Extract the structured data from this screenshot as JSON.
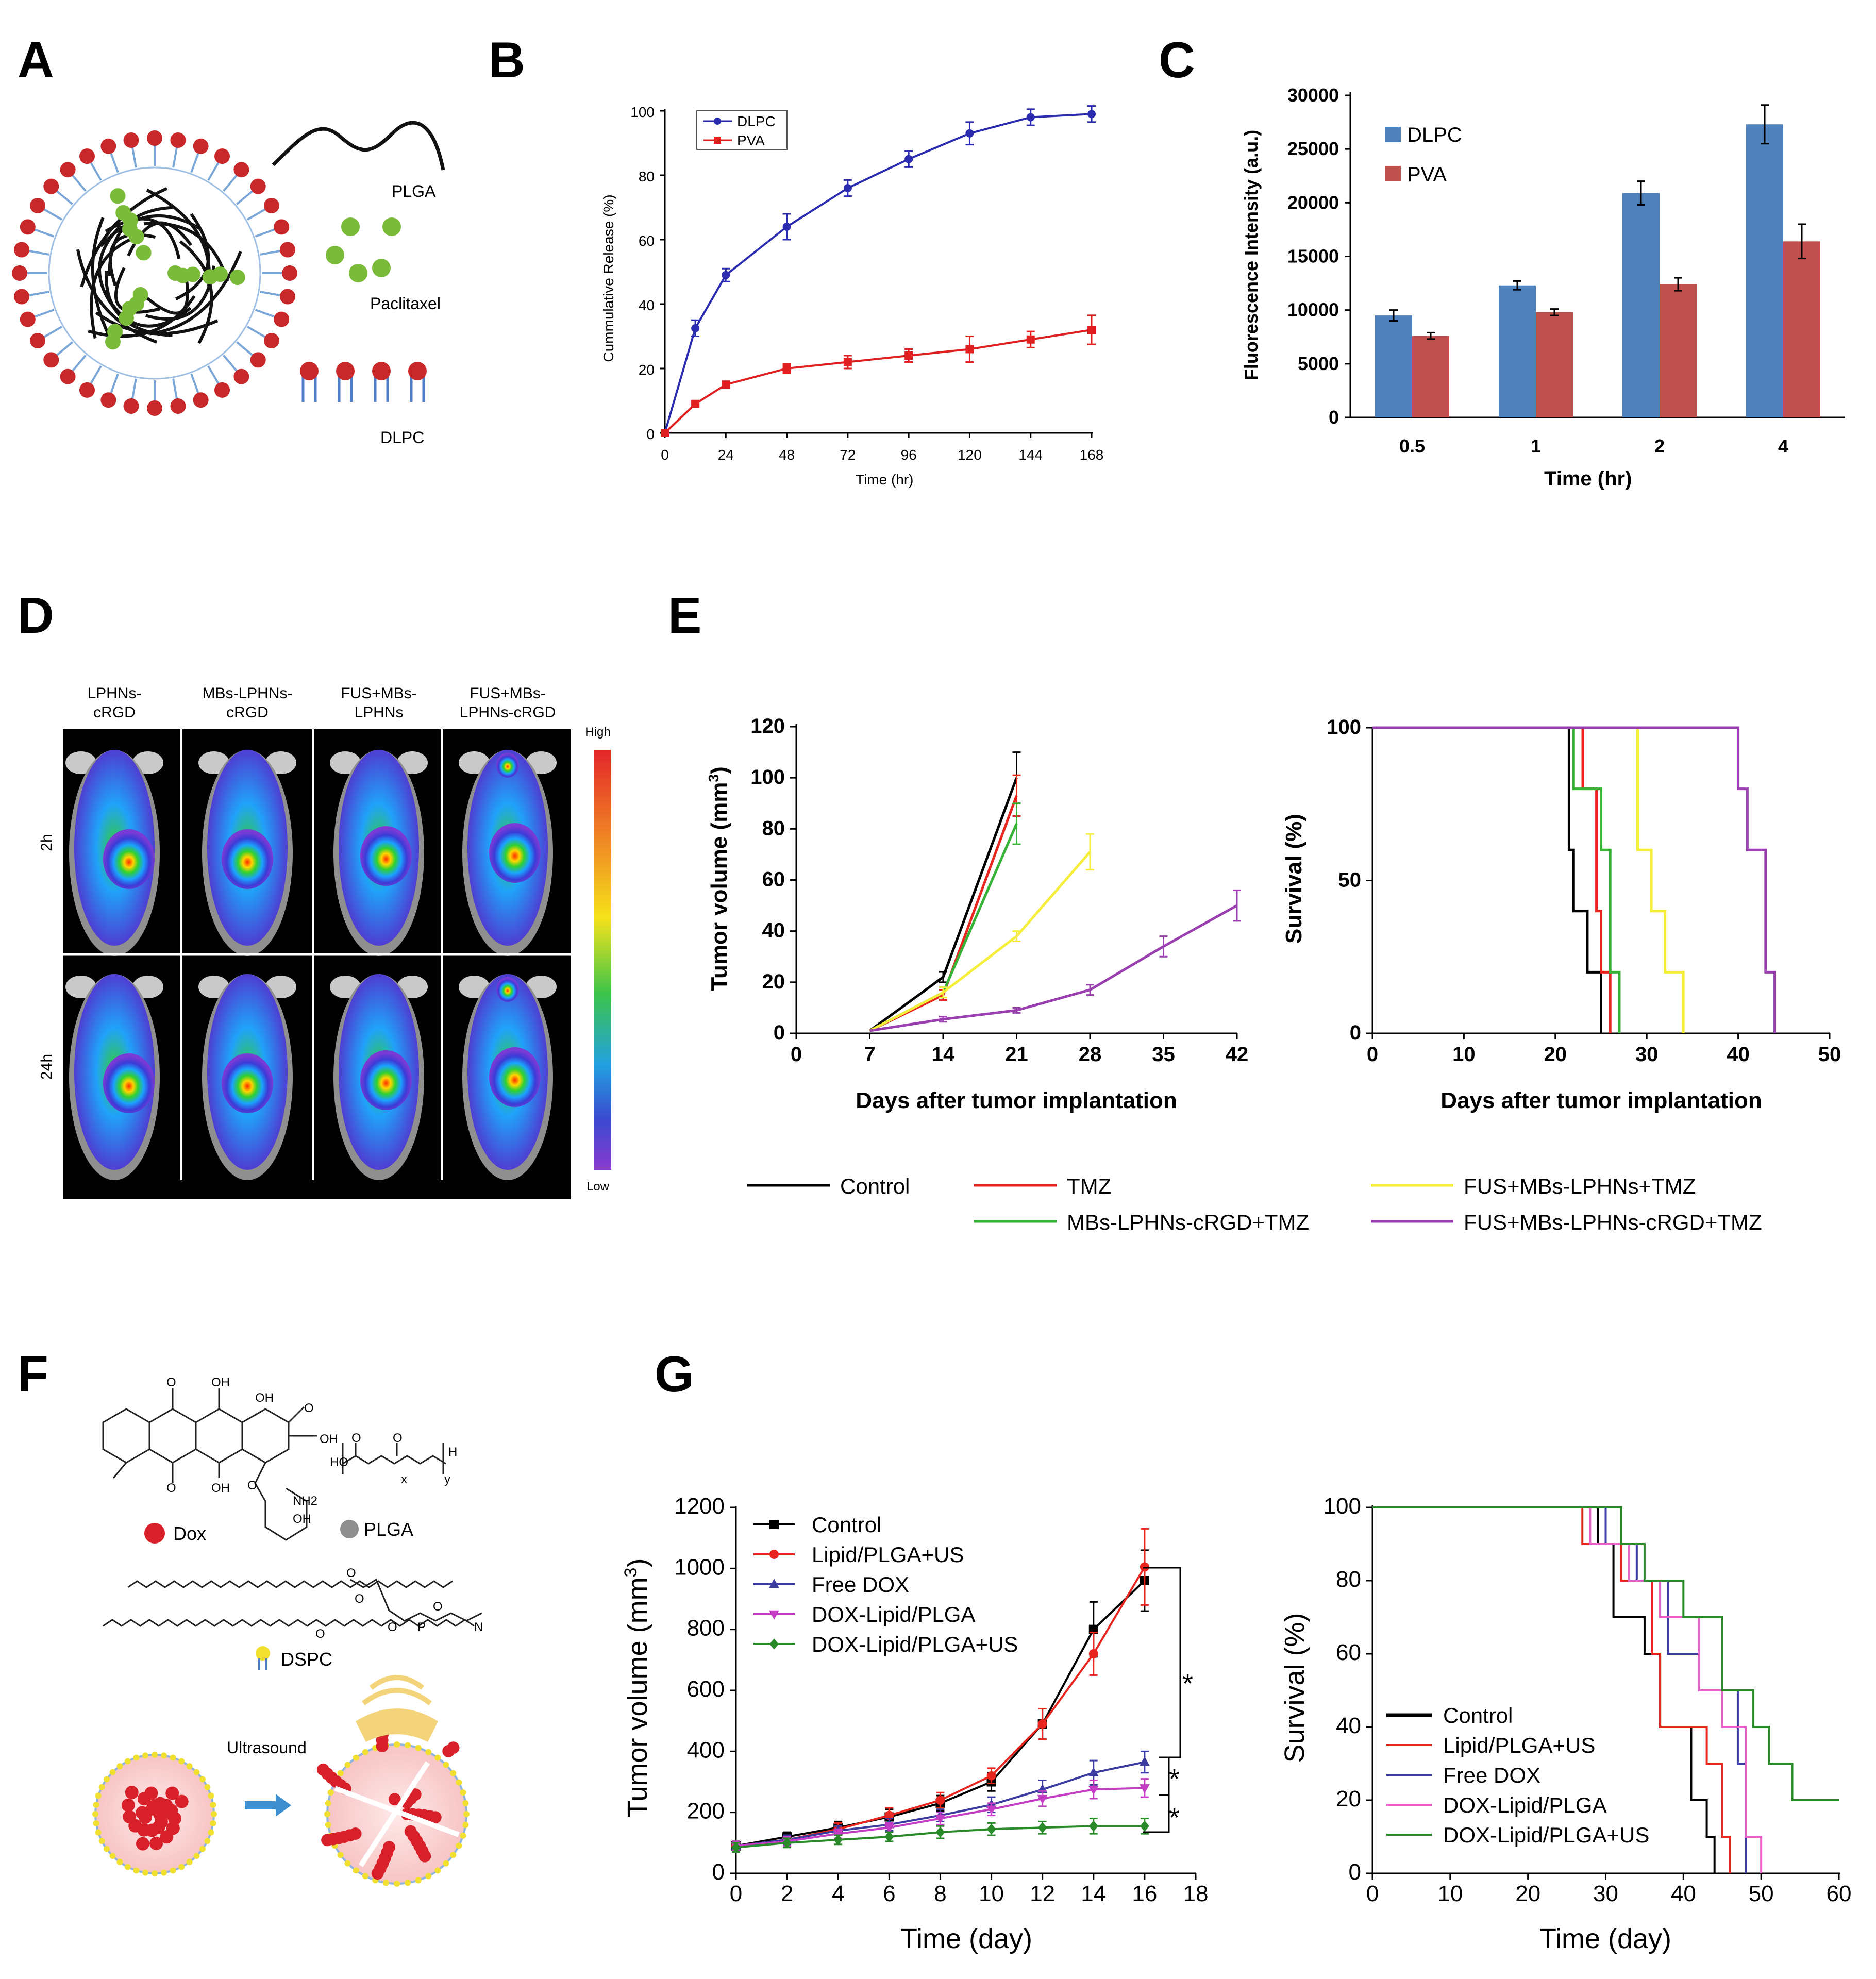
{
  "panels": {
    "A": "A",
    "B": "B",
    "C": "C",
    "D": "D",
    "E": "E",
    "F": "F",
    "G": "G"
  },
  "schematic_a": {
    "labels": [
      "PLGA",
      "Paclitaxel",
      "DLPC"
    ]
  },
  "chart_data": [
    {
      "id": "B",
      "type": "line",
      "xlabel": "Time (hr)",
      "ylabel": "Cummulative Release (%)",
      "xlim": [
        0,
        168
      ],
      "ylim": [
        0,
        100
      ],
      "xticks": [
        0,
        24,
        48,
        72,
        96,
        120,
        144,
        168
      ],
      "yticks": [
        0,
        20,
        40,
        60,
        80,
        100
      ],
      "legend_position": "top-left",
      "series": [
        {
          "name": "DLPC",
          "color": "#2b2bb0",
          "marker": "circle",
          "x": [
            0,
            12,
            24,
            48,
            72,
            96,
            120,
            144,
            168
          ],
          "y": [
            0,
            32.5,
            49,
            64,
            76,
            85,
            93,
            98,
            99
          ],
          "err": [
            0,
            2.5,
            2,
            4,
            2.5,
            2.5,
            3.5,
            2.5,
            2.5
          ]
        },
        {
          "name": "PVA",
          "color": "#e02020",
          "marker": "square",
          "x": [
            0,
            12,
            24,
            48,
            72,
            96,
            120,
            144,
            168
          ],
          "y": [
            0,
            9,
            15,
            20,
            22,
            24,
            26,
            29,
            32
          ],
          "err": [
            0,
            0.8,
            1,
            1.5,
            2,
            2,
            4,
            2.5,
            4.5
          ]
        }
      ]
    },
    {
      "id": "C",
      "type": "bar",
      "xlabel": "Time (hr)",
      "ylabel": "Fluorescence Intensity (a.u.)",
      "ylim": [
        0,
        30000
      ],
      "yticks": [
        0,
        5000,
        10000,
        15000,
        20000,
        25000,
        30000
      ],
      "categories": [
        "0.5",
        "1",
        "2",
        "4"
      ],
      "legend_position": "top-left",
      "series": [
        {
          "name": "DLPC",
          "color": "#4f81bd",
          "values": [
            9500,
            12300,
            20900,
            27300
          ],
          "err": [
            500,
            400,
            1100,
            1800
          ]
        },
        {
          "name": "PVA",
          "color": "#c0504d",
          "values": [
            7600,
            9800,
            12400,
            16400
          ],
          "err": [
            300,
            300,
            600,
            1600
          ]
        }
      ]
    },
    {
      "id": "E-tumor",
      "type": "line",
      "xlabel": "Days after tumor implantation",
      "ylabel": "Tumor volume (mm3)",
      "xlim": [
        0,
        42
      ],
      "ylim": [
        0,
        120
      ],
      "xticks": [
        0,
        7,
        14,
        21,
        28,
        35,
        42
      ],
      "yticks": [
        0,
        20,
        40,
        60,
        80,
        100,
        120
      ],
      "series": [
        {
          "name": "Control",
          "color": "#000000",
          "x": [
            7,
            14,
            21
          ],
          "y": [
            1,
            22,
            100
          ],
          "err": [
            0,
            2,
            10
          ]
        },
        {
          "name": "TMZ",
          "color": "#e8261f",
          "x": [
            7,
            14,
            21
          ],
          "y": [
            1,
            15,
            93
          ],
          "err": [
            0,
            2,
            8
          ]
        },
        {
          "name": "MBs-LPHNs-cRGD+TMZ",
          "color": "#36b236",
          "x": [
            7,
            14,
            21
          ],
          "y": [
            1,
            16,
            82
          ],
          "err": [
            0,
            2,
            8
          ]
        },
        {
          "name": "FUS+MBs-LPHNs+TMZ",
          "color": "#f5ee3a",
          "x": [
            7,
            14,
            21,
            28
          ],
          "y": [
            1,
            16,
            38,
            71
          ],
          "err": [
            0,
            2,
            2,
            7
          ]
        },
        {
          "name": "FUS+MBs-LPHNs-cRGD+TMZ",
          "color": "#9a3fb0",
          "x": [
            7,
            14,
            21,
            28,
            35,
            42
          ],
          "y": [
            1,
            5.5,
            9,
            17,
            34,
            50
          ],
          "err": [
            0,
            1,
            1,
            2,
            4,
            6
          ]
        }
      ]
    },
    {
      "id": "E-survival",
      "type": "line",
      "xlabel": "Days after tumor implantation",
      "ylabel": "Survival (%)",
      "xlim": [
        0,
        50
      ],
      "ylim": [
        0,
        100
      ],
      "xticks": [
        0,
        10,
        20,
        30,
        40,
        50
      ],
      "yticks": [
        0,
        50,
        100
      ],
      "series": [
        {
          "name": "Control",
          "color": "#000000",
          "x": [
            0,
            21.5,
            21.5,
            22,
            22,
            23.5,
            23.5,
            24.5,
            24.5,
            25,
            25
          ],
          "y": [
            100,
            100,
            60,
            60,
            40,
            40,
            20,
            20,
            20,
            20,
            0
          ]
        },
        {
          "name": "TMZ",
          "color": "#e8261f",
          "x": [
            0,
            23,
            23,
            24.5,
            24.5,
            25,
            25,
            26,
            26
          ],
          "y": [
            100,
            100,
            80,
            80,
            40,
            40,
            20,
            20,
            0
          ]
        },
        {
          "name": "MBs-LPHNs-cRGD+TMZ",
          "color": "#36b236",
          "x": [
            0,
            22,
            22,
            25,
            25,
            26,
            26,
            26.5,
            26.5,
            27,
            27
          ],
          "y": [
            100,
            100,
            80,
            80,
            60,
            60,
            20,
            20,
            20,
            20,
            0
          ]
        },
        {
          "name": "FUS+MBs-LPHNs+TMZ",
          "color": "#f5ee3a",
          "x": [
            0,
            29,
            29,
            30.5,
            30.5,
            32,
            32,
            34,
            34
          ],
          "y": [
            100,
            100,
            60,
            60,
            40,
            40,
            20,
            20,
            0
          ]
        },
        {
          "name": "FUS+MBs-LPHNs-cRGD+TMZ",
          "color": "#9a3fb0",
          "x": [
            0,
            40,
            40,
            41,
            41,
            43,
            43,
            44,
            44
          ],
          "y": [
            100,
            100,
            80,
            80,
            60,
            60,
            20,
            20,
            0
          ]
        }
      ]
    },
    {
      "id": "G-tumor",
      "type": "line",
      "xlabel": "Time (day)",
      "ylabel": "Tumor volume (mm3)",
      "xlim": [
        0,
        18
      ],
      "ylim": [
        0,
        1200
      ],
      "xticks": [
        0,
        2,
        4,
        6,
        8,
        10,
        12,
        14,
        16,
        18
      ],
      "yticks": [
        0,
        200,
        400,
        600,
        800,
        1000,
        1200
      ],
      "legend_position": "top-left",
      "annotations": [
        "*",
        "*",
        "*"
      ],
      "series": [
        {
          "name": "Control",
          "color": "#000000",
          "marker": "square",
          "x": [
            0,
            2,
            4,
            6,
            8,
            10,
            12,
            14,
            16
          ],
          "y": [
            90,
            120,
            150,
            185,
            230,
            300,
            490,
            800,
            960
          ],
          "err": [
            15,
            15,
            20,
            25,
            25,
            30,
            50,
            90,
            100
          ]
        },
        {
          "name": "Lipid/PLGA+US",
          "color": "#e8261f",
          "marker": "circle",
          "x": [
            0,
            2,
            4,
            6,
            8,
            10,
            12,
            14,
            16
          ],
          "y": [
            90,
            110,
            145,
            190,
            240,
            320,
            490,
            720,
            1005
          ],
          "err": [
            15,
            15,
            20,
            25,
            25,
            25,
            50,
            70,
            125
          ]
        },
        {
          "name": "Free DOX",
          "color": "#3b3ba0",
          "marker": "triangle-up",
          "x": [
            0,
            2,
            4,
            6,
            8,
            10,
            12,
            14,
            16
          ],
          "y": [
            90,
            110,
            140,
            160,
            190,
            225,
            275,
            330,
            365
          ],
          "err": [
            15,
            15,
            15,
            20,
            20,
            25,
            30,
            40,
            35
          ]
        },
        {
          "name": "DOX-Lipid/PLGA",
          "color": "#c43cc4",
          "marker": "triangle-down",
          "x": [
            0,
            2,
            4,
            6,
            8,
            10,
            12,
            14,
            16
          ],
          "y": [
            90,
            105,
            130,
            150,
            180,
            210,
            245,
            275,
            280
          ],
          "err": [
            15,
            15,
            15,
            15,
            20,
            20,
            25,
            30,
            30
          ]
        },
        {
          "name": "DOX-Lipid/PLGA+US",
          "color": "#2a8a2a",
          "marker": "diamond",
          "x": [
            0,
            2,
            4,
            6,
            8,
            10,
            12,
            14,
            16
          ],
          "y": [
            85,
            100,
            110,
            120,
            135,
            145,
            150,
            155,
            155
          ],
          "err": [
            15,
            15,
            15,
            15,
            20,
            20,
            20,
            25,
            25
          ]
        }
      ]
    },
    {
      "id": "G-survival",
      "type": "line",
      "xlabel": "Time (day)",
      "ylabel": "Survival (%)",
      "xlim": [
        0,
        60
      ],
      "ylim": [
        0,
        100
      ],
      "xticks": [
        0,
        10,
        20,
        30,
        40,
        50,
        60
      ],
      "yticks": [
        0,
        20,
        40,
        60,
        80,
        100
      ],
      "legend_position": "bottom-left",
      "series": [
        {
          "name": "Control",
          "color": "#000000",
          "x": [
            0,
            29,
            29,
            31,
            31,
            35,
            35,
            37,
            37,
            41,
            41,
            43,
            43,
            44,
            44
          ],
          "y": [
            100,
            100,
            90,
            90,
            70,
            70,
            60,
            60,
            40,
            40,
            20,
            20,
            10,
            10,
            0
          ]
        },
        {
          "name": "Lipid/PLGA+US",
          "color": "#e8261f",
          "x": [
            0,
            27,
            27,
            32,
            32,
            36,
            36,
            37,
            37,
            43,
            43,
            45,
            45,
            46,
            46
          ],
          "y": [
            100,
            100,
            90,
            90,
            80,
            80,
            60,
            60,
            40,
            40,
            30,
            30,
            10,
            10,
            0
          ]
        },
        {
          "name": "Free DOX",
          "color": "#3b3ba0",
          "x": [
            0,
            30,
            30,
            34,
            34,
            38,
            38,
            42,
            42,
            47,
            47,
            48,
            48
          ],
          "y": [
            100,
            100,
            90,
            90,
            80,
            80,
            60,
            60,
            50,
            50,
            30,
            30,
            0
          ]
        },
        {
          "name": "DOX-Lipid/PLGA",
          "color": "#e860c8",
          "x": [
            0,
            28,
            28,
            33,
            33,
            37,
            37,
            42,
            42,
            45,
            45,
            48,
            48,
            50,
            50
          ],
          "y": [
            100,
            100,
            90,
            90,
            80,
            80,
            70,
            70,
            50,
            50,
            40,
            40,
            10,
            10,
            0
          ]
        },
        {
          "name": "DOX-Lipid/PLGA+US",
          "color": "#2a8a2a",
          "x": [
            0,
            32,
            32,
            35,
            35,
            40,
            40,
            45,
            45,
            49,
            49,
            51,
            51,
            54,
            54,
            60
          ],
          "y": [
            100,
            100,
            90,
            90,
            80,
            80,
            70,
            70,
            50,
            50,
            40,
            40,
            30,
            30,
            20,
            20
          ]
        }
      ]
    }
  ],
  "legend_e": [
    {
      "name": "Control",
      "color": "#000000"
    },
    {
      "name": "TMZ",
      "color": "#e8261f"
    },
    {
      "name": "FUS+MBs-LPHNs+TMZ",
      "color": "#f5ee3a"
    },
    {
      "name": "MBs-LPHNs-cRGD+TMZ",
      "color": "#36b236"
    },
    {
      "name": "FUS+MBs-LPHNs-cRGD+TMZ",
      "color": "#9a3fb0"
    }
  ],
  "panel_d": {
    "columns": [
      "LPHNs-",
      "cRGD",
      "MBs-LPHNs-",
      "cRGD",
      "FUS+MBs-",
      "LPHNs",
      "FUS+MBs-",
      "LPHNs-cRGD"
    ],
    "rows": [
      "2h",
      "24h"
    ],
    "scale_high": "High",
    "scale_low": "Low"
  },
  "panel_f": {
    "labels": [
      "Dox",
      "PLGA",
      "DSPC",
      "Ultrasound"
    ],
    "chem": [
      "O",
      "OH",
      "OH",
      "OH",
      "O",
      "O",
      "OH",
      "NH2",
      "O",
      "OH",
      "HO",
      "O",
      "O",
      "H",
      "x",
      "y",
      "O",
      "O",
      "O",
      "O",
      "P",
      "O",
      "N"
    ]
  }
}
